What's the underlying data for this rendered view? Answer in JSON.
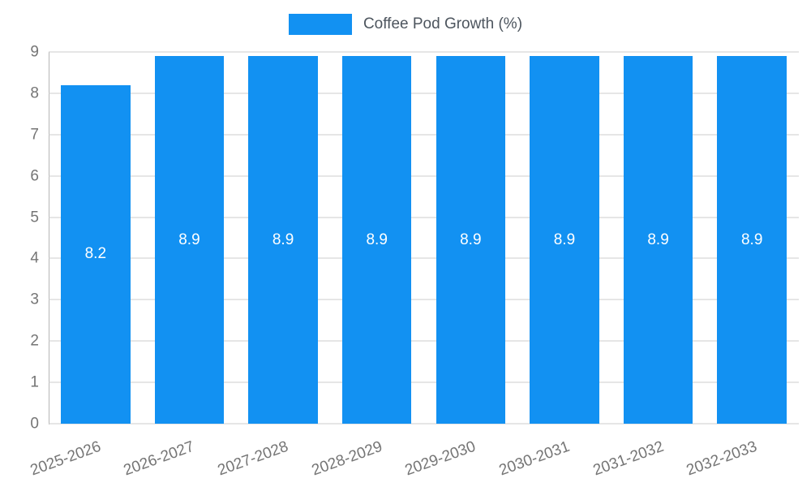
{
  "chart_data": {
    "type": "bar",
    "title": "Coffee Pod Growth (%)",
    "categories": [
      "2025-2026",
      "2026-2027",
      "2027-2028",
      "2028-2029",
      "2029-2030",
      "2030-2031",
      "2031-2032",
      "2032-2033"
    ],
    "values": [
      8.2,
      8.9,
      8.9,
      8.9,
      8.9,
      8.9,
      8.9,
      8.9
    ],
    "value_labels": [
      "8.2",
      "8.9",
      "8.9",
      "8.9",
      "8.9",
      "8.9",
      "8.9",
      "8.9"
    ],
    "xlabel": "",
    "ylabel": "",
    "ylim": [
      0,
      9
    ],
    "yticks": [
      0,
      1,
      2,
      3,
      4,
      5,
      6,
      7,
      8,
      9
    ],
    "grid": true,
    "legend_position": "top",
    "bar_color": "#1291f2",
    "bar_label_color": "#ffffff",
    "tick_color": "#757575",
    "gridline_color": "#cccccc"
  }
}
